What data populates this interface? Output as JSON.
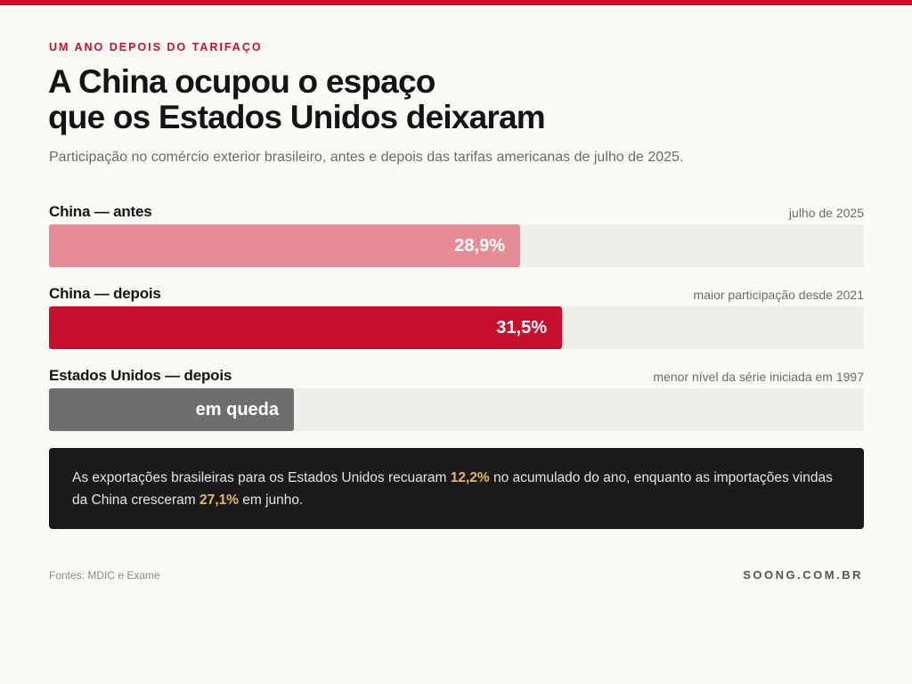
{
  "kicker": "UM ANO DEPOIS DO TARIFAÇO",
  "title_line1": "A China ocupou o espaço",
  "title_line2": "que os Estados Unidos deixaram",
  "subtitle": "Participação no comércio exterior brasileiro, antes e depois das tarifas americanas de julho de 2025.",
  "colors": {
    "accent": "#c8102e",
    "china_before": "#e68c97",
    "china_after": "#c8102e",
    "us_after": "#6e6e6e",
    "track": "#efede9",
    "highlight": "#e6b95c"
  },
  "chart_data": {
    "type": "bar",
    "orientation": "horizontal",
    "xlim": [
      0,
      50
    ],
    "bars": [
      {
        "label": "China — antes",
        "note": "julho de 2025",
        "value": 28.9,
        "value_label": "28,9%",
        "color": "#e68c97"
      },
      {
        "label": "China — depois",
        "note": "maior participação desde 2021",
        "value": 31.5,
        "value_label": "31,5%",
        "color": "#c8102e"
      },
      {
        "label": "Estados Unidos — depois",
        "note": "menor nível da série iniciada em 1997",
        "value": 15,
        "value_label": "em queda",
        "color": "#6e6e6e"
      }
    ]
  },
  "callout": {
    "part1": "As exportações brasileiras para os Estados Unidos recuaram ",
    "hl1": "12,2%",
    "part2": " no acumulado do ano, enquanto as importações vindas da China cresceram ",
    "hl2": "27,1%",
    "part3": " em junho."
  },
  "footer": {
    "sources": "Fontes: MDIC e Exame",
    "brand_a": "SOONG",
    "brand_dot": ".",
    "brand_b": "COM.BR"
  }
}
